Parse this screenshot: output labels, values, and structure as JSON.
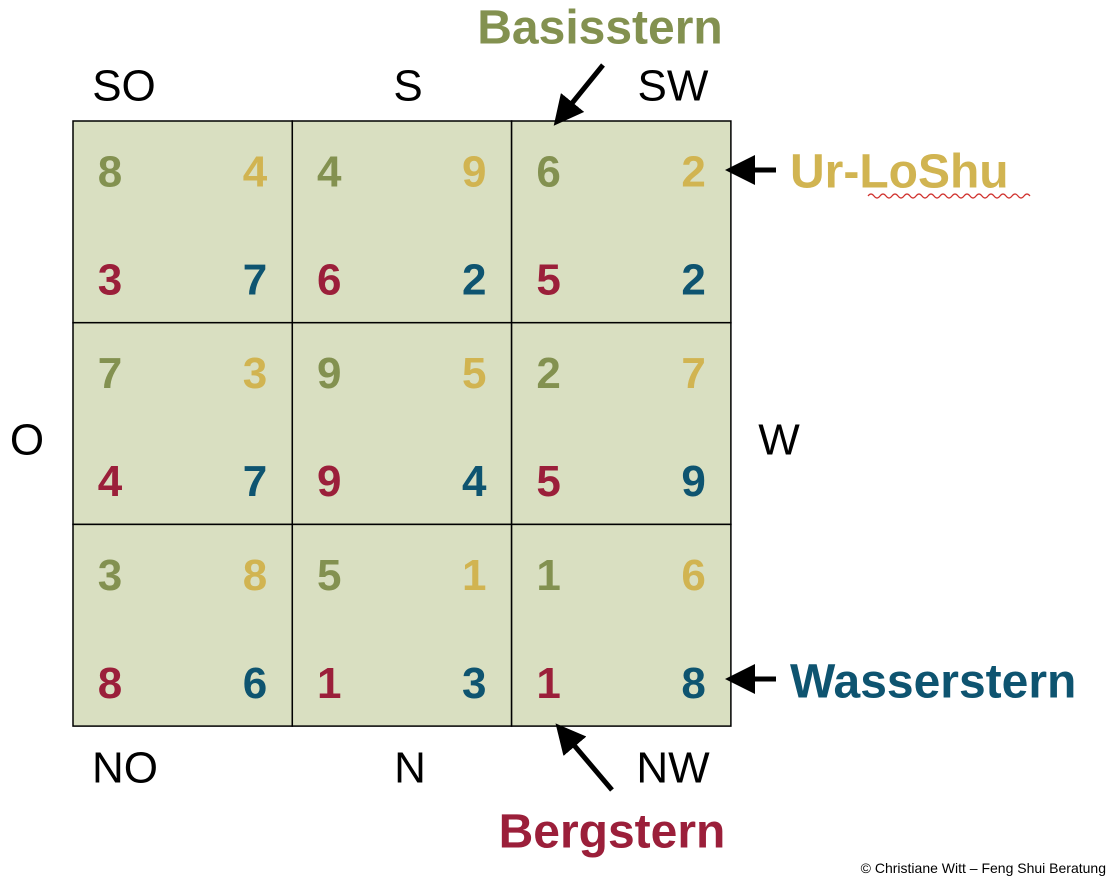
{
  "directions": {
    "top": [
      "SO",
      "S",
      "SW"
    ],
    "left": "O",
    "right": "W",
    "bottom": [
      "NO",
      "N",
      "NW"
    ]
  },
  "labels": {
    "basisstern": "Basisstern",
    "ur_loshu": "Ur-LoShu",
    "wasserstern": "Wasserstern",
    "bergstern": "Bergstern"
  },
  "grid": {
    "rows": [
      [
        {
          "base": 8,
          "loshu": 4,
          "mountain": 3,
          "water": 7
        },
        {
          "base": 4,
          "loshu": 9,
          "mountain": 6,
          "water": 2
        },
        {
          "base": 6,
          "loshu": 2,
          "mountain": 5,
          "water": 2
        }
      ],
      [
        {
          "base": 7,
          "loshu": 3,
          "mountain": 4,
          "water": 7
        },
        {
          "base": 9,
          "loshu": 5,
          "mountain": 9,
          "water": 4
        },
        {
          "base": 2,
          "loshu": 7,
          "mountain": 5,
          "water": 9
        }
      ],
      [
        {
          "base": 3,
          "loshu": 8,
          "mountain": 8,
          "water": 6
        },
        {
          "base": 5,
          "loshu": 1,
          "mountain": 1,
          "water": 3
        },
        {
          "base": 1,
          "loshu": 6,
          "mountain": 1,
          "water": 8
        }
      ]
    ]
  },
  "footer": "© Christiane Witt – Feng Shui Beratung"
}
